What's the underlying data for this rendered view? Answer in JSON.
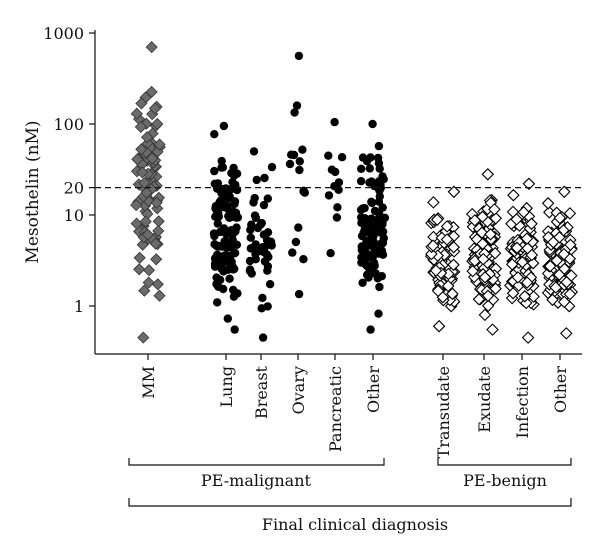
{
  "chart_data": {
    "type": "scatter",
    "ylabel": "Mesothelin (nM)",
    "xlabel": "Final clinical diagnosis",
    "yscale": "log",
    "ylim": [
      0.4,
      1000
    ],
    "y_ticks": [
      {
        "value": 1,
        "label": "1"
      },
      {
        "value": 10,
        "label": "10"
      },
      {
        "value": 20,
        "label": "20"
      },
      {
        "value": 100,
        "label": "100"
      },
      {
        "value": 1000,
        "label": "1000"
      }
    ],
    "cutoff": {
      "value": 20,
      "style": "dashed"
    },
    "groups": [
      {
        "label": "PE-malignant",
        "members": [
          "Lung",
          "Breast",
          "Ovary",
          "Pancreatic",
          "Other"
        ]
      },
      {
        "label": "PE-benign",
        "members": [
          "Transudate",
          "Exudate",
          "Infection",
          "Other"
        ]
      }
    ],
    "categories": [
      "MM",
      "Lung",
      "Breast",
      "Ovary",
      "Pancreatic",
      "Other",
      "Transudate",
      "Exudate",
      "Infection",
      "Other"
    ],
    "series": [
      {
        "category": "MM",
        "marker": "filled-diamond",
        "color": "#6b6b6b",
        "count": 90,
        "min": 0.45,
        "max": 700
      },
      {
        "category": "Lung",
        "marker": "filled-circle",
        "color": "#000000",
        "count": 120,
        "min": 0.55,
        "max": 95
      },
      {
        "category": "Breast",
        "marker": "filled-circle",
        "color": "#000000",
        "count": 45,
        "min": 0.45,
        "max": 50
      },
      {
        "category": "Ovary",
        "marker": "filled-circle",
        "color": "#000000",
        "count": 18,
        "min": 1.35,
        "max": 560
      },
      {
        "category": "Pancreatic",
        "marker": "filled-circle",
        "color": "#000000",
        "count": 12,
        "min": 3.8,
        "max": 105
      },
      {
        "category": "Other",
        "marker": "filled-circle",
        "color": "#000000",
        "count": 100,
        "min": 0.55,
        "max": 100
      },
      {
        "category": "Transudate",
        "marker": "open-diamond",
        "color": "#000000",
        "count": 80,
        "min": 0.6,
        "max": 18
      },
      {
        "category": "Exudate",
        "marker": "open-diamond",
        "color": "#000000",
        "count": 110,
        "min": 0.55,
        "max": 28
      },
      {
        "category": "Infection",
        "marker": "open-diamond",
        "color": "#000000",
        "count": 100,
        "min": 0.45,
        "max": 22
      },
      {
        "category": "Other",
        "marker": "open-diamond",
        "color": "#000000",
        "count": 100,
        "min": 0.5,
        "max": 18
      }
    ]
  }
}
